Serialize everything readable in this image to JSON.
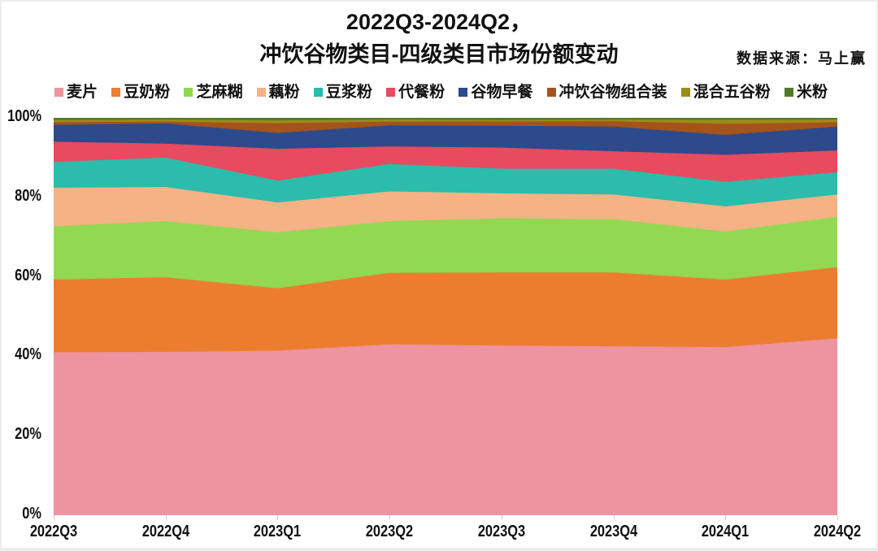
{
  "header": {
    "title_line1": "2022Q3-2024Q2，",
    "title_line2": "冲饮谷物类目-四级类目市场份额变动",
    "source_note": "数据来源：马上赢"
  },
  "axes": {
    "y_tick_labels": [
      "0%",
      "20%",
      "40%",
      "60%",
      "80%",
      "100%"
    ],
    "x_tick_labels": [
      "2022Q3",
      "2022Q4",
      "2023Q1",
      "2023Q2",
      "2023Q3",
      "2023Q4",
      "2024Q1",
      "2024Q2"
    ]
  },
  "chart_data": {
    "type": "area",
    "stacked": true,
    "percent": true,
    "title": "2022Q3-2024Q2，冲饮谷物类目-四级类目市场份额变动",
    "xlabel": "",
    "ylabel": "",
    "ylim": [
      0,
      100
    ],
    "ytick_step": 20,
    "grid": false,
    "legend_position": "top",
    "categories": [
      "2022Q3",
      "2022Q4",
      "2023Q1",
      "2023Q2",
      "2023Q3",
      "2023Q4",
      "2024Q1",
      "2024Q2"
    ],
    "series": [
      {
        "name": "麦片",
        "color": "#ee93a0",
        "values": [
          41.0,
          41.1,
          41.4,
          43.0,
          42.7,
          42.5,
          42.3,
          44.5
        ]
      },
      {
        "name": "豆奶粉",
        "color": "#ec7d2e",
        "values": [
          18.3,
          18.8,
          15.7,
          18.0,
          18.4,
          18.6,
          17.0,
          17.9
        ]
      },
      {
        "name": "芝麻糊",
        "color": "#92d851",
        "values": [
          13.4,
          14.1,
          14.1,
          13.0,
          13.6,
          13.4,
          12.1,
          12.7
        ]
      },
      {
        "name": "藕粉",
        "color": "#f4b285",
        "values": [
          9.7,
          8.6,
          7.5,
          7.5,
          6.3,
          6.2,
          6.3,
          5.6
        ]
      },
      {
        "name": "豆浆粉",
        "color": "#2bbcac",
        "values": [
          6.5,
          7.4,
          5.5,
          6.9,
          6.2,
          6.5,
          6.2,
          5.6
        ]
      },
      {
        "name": "代餐粉",
        "color": "#e84a5f",
        "values": [
          5.1,
          3.5,
          8.0,
          4.4,
          5.3,
          4.4,
          6.8,
          5.5
        ]
      },
      {
        "name": "谷物早餐",
        "color": "#2c4a8c",
        "values": [
          4.2,
          5.1,
          4.0,
          5.3,
          5.5,
          6.2,
          5.0,
          6.0
        ]
      },
      {
        "name": "冲饮谷物组合装",
        "color": "#a4541a",
        "values": [
          0.7,
          0.45,
          2.45,
          0.95,
          1.1,
          1.35,
          2.8,
          1.1
        ]
      },
      {
        "name": "混合五谷粉",
        "color": "#9c8c1a",
        "values": [
          0.55,
          0.5,
          0.7,
          0.5,
          0.35,
          0.4,
          1.0,
          0.65
        ]
      },
      {
        "name": "米粉",
        "color": "#4f7b28",
        "values": [
          0.55,
          0.45,
          0.65,
          0.45,
          0.55,
          0.45,
          0.5,
          0.45
        ]
      }
    ]
  }
}
